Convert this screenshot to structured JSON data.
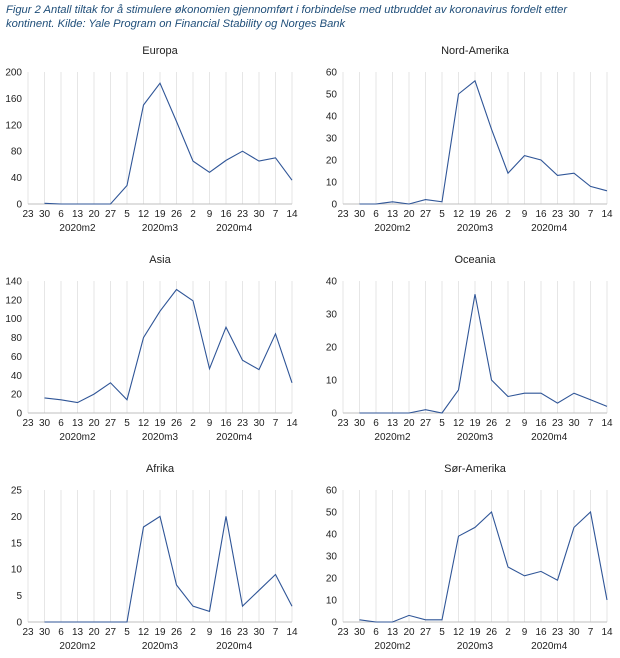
{
  "figure": {
    "caption": "Figur 2 Antall tiltak for å stimulere økonomien gjennomført i forbindelse med utbruddet av koronavirus fordelt etter kontinent. Kilde: Yale Program on Financial Stability og Norges Bank",
    "line_color": "#2f5597"
  },
  "chart_data": [
    {
      "type": "line",
      "title": "Europa",
      "x": [
        "23",
        "30",
        "6",
        "13",
        "20",
        "27",
        "5",
        "12",
        "19",
        "26",
        "2",
        "9",
        "16",
        "23",
        "30",
        "7",
        "14"
      ],
      "groups": [
        {
          "label": "2020m2",
          "start": 1,
          "end": 5
        },
        {
          "label": "2020m3",
          "start": 6,
          "end": 10
        },
        {
          "label": "2020m4",
          "start": 10,
          "end": 15
        }
      ],
      "values": [
        null,
        1,
        0,
        0,
        0,
        0,
        28,
        150,
        183,
        125,
        65,
        48,
        66,
        80,
        65,
        70,
        36
      ],
      "ylim": [
        0,
        200
      ],
      "yticks": [
        0,
        40,
        80,
        120,
        160,
        200
      ]
    },
    {
      "type": "line",
      "title": "Nord-Amerika",
      "x": [
        "23",
        "30",
        "6",
        "13",
        "20",
        "27",
        "5",
        "12",
        "19",
        "26",
        "2",
        "9",
        "16",
        "23",
        "30",
        "7",
        "14"
      ],
      "groups": [
        {
          "label": "2020m2",
          "start": 1,
          "end": 5
        },
        {
          "label": "2020m3",
          "start": 6,
          "end": 10
        },
        {
          "label": "2020m4",
          "start": 10,
          "end": 15
        }
      ],
      "values": [
        null,
        0,
        0,
        1,
        0,
        2,
        1,
        50,
        56,
        34,
        14,
        22,
        20,
        13,
        14,
        8,
        6
      ],
      "ylim": [
        0,
        60
      ],
      "yticks": [
        0,
        10,
        20,
        30,
        40,
        50,
        60
      ]
    },
    {
      "type": "line",
      "title": "Asia",
      "x": [
        "23",
        "30",
        "6",
        "13",
        "20",
        "27",
        "5",
        "12",
        "19",
        "26",
        "2",
        "9",
        "16",
        "23",
        "30",
        "7",
        "14"
      ],
      "groups": [
        {
          "label": "2020m2",
          "start": 1,
          "end": 5
        },
        {
          "label": "2020m3",
          "start": 6,
          "end": 10
        },
        {
          "label": "2020m4",
          "start": 10,
          "end": 15
        }
      ],
      "values": [
        null,
        16,
        14,
        11,
        20,
        32,
        14,
        80,
        108,
        131,
        119,
        47,
        91,
        56,
        46,
        84,
        32
      ],
      "ylim": [
        0,
        140
      ],
      "yticks": [
        0,
        20,
        40,
        60,
        80,
        100,
        120,
        140
      ]
    },
    {
      "type": "line",
      "title": "Oceania",
      "x": [
        "23",
        "30",
        "6",
        "13",
        "20",
        "27",
        "5",
        "12",
        "19",
        "26",
        "2",
        "9",
        "16",
        "23",
        "30",
        "7",
        "14"
      ],
      "groups": [
        {
          "label": "2020m2",
          "start": 1,
          "end": 5
        },
        {
          "label": "2020m3",
          "start": 6,
          "end": 10
        },
        {
          "label": "2020m4",
          "start": 10,
          "end": 15
        }
      ],
      "values": [
        null,
        0,
        0,
        0,
        0,
        1,
        0,
        7,
        36,
        10,
        5,
        6,
        6,
        3,
        6,
        4,
        2
      ],
      "ylim": [
        0,
        40
      ],
      "yticks": [
        0,
        10,
        20,
        30,
        40
      ]
    },
    {
      "type": "line",
      "title": "Afrika",
      "x": [
        "23",
        "30",
        "6",
        "13",
        "20",
        "27",
        "5",
        "12",
        "19",
        "26",
        "2",
        "9",
        "16",
        "23",
        "30",
        "7",
        "14"
      ],
      "groups": [
        {
          "label": "2020m2",
          "start": 1,
          "end": 5
        },
        {
          "label": "2020m3",
          "start": 6,
          "end": 10
        },
        {
          "label": "2020m4",
          "start": 10,
          "end": 15
        }
      ],
      "values": [
        null,
        0,
        0,
        0,
        0,
        0,
        0,
        18,
        20,
        7,
        3,
        2,
        20,
        3,
        6,
        9,
        3
      ],
      "ylim": [
        0,
        25
      ],
      "yticks": [
        0,
        5,
        10,
        15,
        20,
        25
      ]
    },
    {
      "type": "line",
      "title": "Sør-Amerika",
      "x": [
        "23",
        "30",
        "6",
        "13",
        "20",
        "27",
        "5",
        "12",
        "19",
        "26",
        "2",
        "9",
        "16",
        "23",
        "30",
        "7",
        "14"
      ],
      "groups": [
        {
          "label": "2020m2",
          "start": 1,
          "end": 5
        },
        {
          "label": "2020m3",
          "start": 6,
          "end": 10
        },
        {
          "label": "2020m4",
          "start": 10,
          "end": 15
        }
      ],
      "values": [
        null,
        1,
        0,
        0,
        3,
        1,
        1,
        39,
        43,
        50,
        25,
        21,
        23,
        19,
        43,
        50,
        10
      ],
      "ylim": [
        0,
        60
      ],
      "yticks": [
        0,
        10,
        20,
        30,
        40,
        50,
        60
      ]
    }
  ]
}
